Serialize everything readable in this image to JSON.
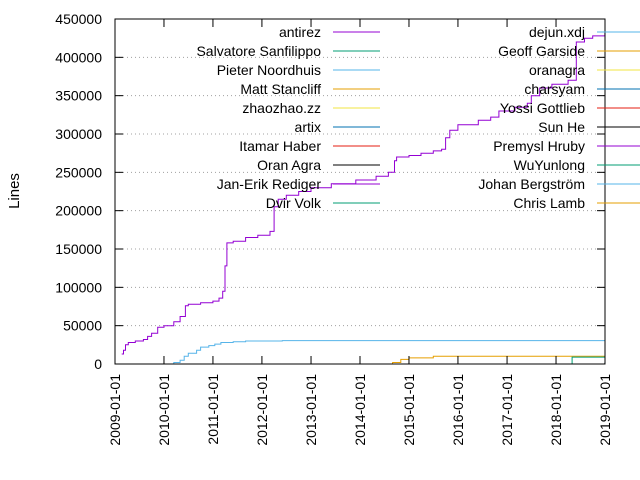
{
  "chart_data": {
    "type": "line",
    "title": "",
    "xlabel": "",
    "ylabel": "Lines",
    "xlim": [
      "2009-01-01",
      "2019-01-01"
    ],
    "ylim": [
      0,
      450000
    ],
    "x_ticks": [
      "2009-01-01",
      "2010-01-01",
      "2011-01-01",
      "2012-01-01",
      "2013-01-01",
      "2014-01-01",
      "2015-01-01",
      "2016-01-01",
      "2017-01-01",
      "2018-01-01",
      "2019-01-01"
    ],
    "y_ticks": [
      0,
      50000,
      100000,
      150000,
      200000,
      250000,
      300000,
      350000,
      400000,
      450000
    ],
    "grid": "horizontal dotted",
    "legend": "top, two columns",
    "series": [
      {
        "name": "antirez",
        "color": "#9400d3",
        "points": [
          [
            "2009-02-20",
            13000
          ],
          [
            "2009-03-05",
            18000
          ],
          [
            "2009-03-20",
            25000
          ],
          [
            "2009-04-10",
            28000
          ],
          [
            "2009-06-01",
            30000
          ],
          [
            "2009-08-01",
            32000
          ],
          [
            "2009-09-01",
            36000
          ],
          [
            "2009-10-01",
            40000
          ],
          [
            "2009-11-15",
            48000
          ],
          [
            "2010-01-01",
            50000
          ],
          [
            "2010-03-15",
            55000
          ],
          [
            "2010-05-01",
            62000
          ],
          [
            "2010-06-10",
            76000
          ],
          [
            "2010-07-01",
            78000
          ],
          [
            "2010-10-01",
            80000
          ],
          [
            "2011-01-01",
            82000
          ],
          [
            "2011-02-15",
            86000
          ],
          [
            "2011-03-15",
            95000
          ],
          [
            "2011-04-01",
            128000
          ],
          [
            "2011-04-15",
            158000
          ],
          [
            "2011-06-01",
            160000
          ],
          [
            "2011-09-01",
            165000
          ],
          [
            "2011-12-01",
            168000
          ],
          [
            "2012-03-01",
            173000
          ],
          [
            "2012-04-01",
            205000
          ],
          [
            "2012-05-01",
            215000
          ],
          [
            "2012-07-01",
            220000
          ],
          [
            "2012-10-01",
            225000
          ],
          [
            "2013-01-01",
            230000
          ],
          [
            "2013-06-01",
            235000
          ],
          [
            "2013-12-01",
            240000
          ],
          [
            "2014-05-01",
            245000
          ],
          [
            "2014-08-01",
            250000
          ],
          [
            "2014-09-15",
            265000
          ],
          [
            "2014-10-01",
            270000
          ],
          [
            "2015-01-01",
            272000
          ],
          [
            "2015-04-01",
            275000
          ],
          [
            "2015-07-01",
            278000
          ],
          [
            "2015-09-01",
            280000
          ],
          [
            "2015-10-01",
            295000
          ],
          [
            "2015-11-01",
            305000
          ],
          [
            "2016-01-01",
            312000
          ],
          [
            "2016-06-01",
            318000
          ],
          [
            "2016-09-01",
            322000
          ],
          [
            "2016-11-01",
            330000
          ],
          [
            "2017-03-01",
            335000
          ],
          [
            "2017-06-01",
            340000
          ],
          [
            "2017-07-01",
            350000
          ],
          [
            "2017-09-01",
            360000
          ],
          [
            "2017-12-01",
            365000
          ],
          [
            "2018-04-01",
            370000
          ],
          [
            "2018-06-01",
            420000
          ],
          [
            "2018-08-01",
            425000
          ],
          [
            "2018-10-01",
            428000
          ],
          [
            "2018-12-31",
            432000
          ]
        ]
      },
      {
        "name": "Salvatore Sanfilippo",
        "color": "#009e73",
        "points": []
      },
      {
        "name": "Pieter Noordhuis",
        "color": "#56b4e9",
        "points": [
          [
            "2010-02-15",
            0
          ],
          [
            "2010-03-15",
            2000
          ],
          [
            "2010-05-01",
            5000
          ],
          [
            "2010-06-01",
            10000
          ],
          [
            "2010-07-01",
            14000
          ],
          [
            "2010-09-01",
            18000
          ],
          [
            "2010-10-01",
            22000
          ],
          [
            "2010-12-01",
            24000
          ],
          [
            "2011-01-15",
            26000
          ],
          [
            "2011-03-01",
            28000
          ],
          [
            "2011-06-01",
            29000
          ],
          [
            "2011-09-01",
            30000
          ],
          [
            "2012-06-01",
            30500
          ],
          [
            "2013-06-01",
            30500
          ],
          [
            "2018-12-31",
            30500
          ]
        ]
      },
      {
        "name": "Matt Stancliff",
        "color": "#e69f00",
        "points": [
          [
            "2014-06-01",
            0
          ],
          [
            "2014-09-01",
            2000
          ],
          [
            "2014-11-01",
            6000
          ],
          [
            "2015-01-01",
            8000
          ],
          [
            "2015-07-01",
            10000
          ],
          [
            "2018-12-31",
            10000
          ]
        ]
      },
      {
        "name": "zhaozhao.zz",
        "color": "#f0e442",
        "points": [
          [
            "2018-01-01",
            0
          ],
          [
            "2018-12-31",
            1000
          ]
        ]
      },
      {
        "name": "artix",
        "color": "#0072b2",
        "points": [
          [
            "2018-03-01",
            0
          ],
          [
            "2018-12-31",
            2000
          ]
        ]
      },
      {
        "name": "Itamar Haber",
        "color": "#e51e10",
        "points": []
      },
      {
        "name": "Oran Agra",
        "color": "#000000",
        "points": [
          [
            "2018-06-01",
            0
          ],
          [
            "2018-12-31",
            1000
          ]
        ]
      },
      {
        "name": "Jan-Erik Rediger",
        "color": "#9400d3",
        "points": []
      },
      {
        "name": "Dvir Volk",
        "color": "#009e73",
        "points": [
          [
            "2018-03-15",
            0
          ],
          [
            "2018-05-01",
            9000
          ],
          [
            "2018-12-31",
            9000
          ]
        ]
      },
      {
        "name": "dejun.xdj",
        "color": "#56b4e9",
        "points": []
      },
      {
        "name": "Geoff Garside",
        "color": "#e69f00",
        "points": []
      },
      {
        "name": "oranagra",
        "color": "#f0e442",
        "points": []
      },
      {
        "name": "charsyam",
        "color": "#0072b2",
        "points": []
      },
      {
        "name": "Yossi Gottlieb",
        "color": "#e51e10",
        "points": []
      },
      {
        "name": "Sun He",
        "color": "#000000",
        "points": []
      },
      {
        "name": "Premysl Hruby",
        "color": "#9400d3",
        "points": []
      },
      {
        "name": "WuYunlong",
        "color": "#009e73",
        "points": []
      },
      {
        "name": "Johan Bergström",
        "color": "#56b4e9",
        "points": []
      },
      {
        "name": "Chris Lamb",
        "color": "#e69f00",
        "points": []
      }
    ]
  }
}
